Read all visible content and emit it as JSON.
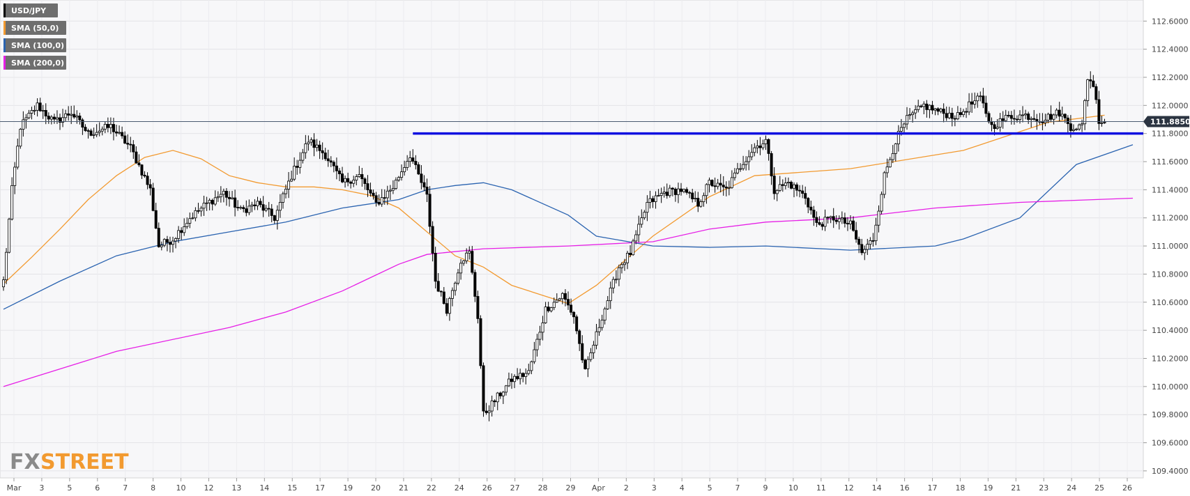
{
  "chart_data": {
    "type": "candlestick",
    "title": "",
    "symbol": "USD/JPY",
    "xlabel": "",
    "ylabel": "",
    "ylim": [
      109.35,
      112.75
    ],
    "y_ticks": [
      "112.6000",
      "112.4000",
      "112.2000",
      "112.0000",
      "111.8000",
      "111.6000",
      "111.4000",
      "111.2000",
      "111.0000",
      "110.8000",
      "110.6000",
      "110.4000",
      "110.2000",
      "110.0000",
      "109.8000",
      "109.6000",
      "109.4000"
    ],
    "x_ticks": [
      "Mar",
      "3",
      "5",
      "6",
      "7",
      "8",
      "10",
      "12",
      "13",
      "14",
      "15",
      "17",
      "19",
      "20",
      "21",
      "22",
      "24",
      "26",
      "27",
      "28",
      "29",
      "Apr",
      "2",
      "3",
      "4",
      "5",
      "7",
      "9",
      "10",
      "11",
      "12",
      "14",
      "16",
      "17",
      "18",
      "19",
      "21",
      "23",
      "24",
      "25",
      "26"
    ],
    "grid": true,
    "legend": {
      "placement": "top-left",
      "items": [
        {
          "label": "USD/JPY",
          "color": "#000000"
        },
        {
          "label": "SMA (50,0)",
          "color": "#f29a30"
        },
        {
          "label": "SMA (100,0)",
          "color": "#2a63b0"
        },
        {
          "label": "SMA (200,0)",
          "color": "#e61ee6"
        }
      ]
    },
    "current_price": {
      "label": "111.8850",
      "value": 111.885
    },
    "support_level": {
      "value": 111.8,
      "from_bar": 145,
      "to_bar": 184,
      "color": "#1010e0"
    },
    "smas": [
      {
        "name": "SMA (50,0)",
        "color": "#f29a30",
        "points": [
          [
            0,
            110.73
          ],
          [
            10,
            110.92
          ],
          [
            20,
            111.12
          ],
          [
            30,
            111.33
          ],
          [
            40,
            111.5
          ],
          [
            50,
            111.63
          ],
          [
            60,
            111.68
          ],
          [
            70,
            111.62
          ],
          [
            80,
            111.5
          ],
          [
            90,
            111.45
          ],
          [
            100,
            111.42
          ],
          [
            110,
            111.42
          ],
          [
            120,
            111.4
          ],
          [
            130,
            111.36
          ],
          [
            140,
            111.27
          ],
          [
            150,
            111.1
          ],
          [
            160,
            110.93
          ],
          [
            170,
            110.85
          ],
          [
            180,
            110.72
          ],
          [
            200,
            110.59
          ],
          [
            210,
            110.72
          ],
          [
            230,
            111.07
          ],
          [
            250,
            111.35
          ],
          [
            266,
            111.5
          ],
          [
            300,
            111.55
          ],
          [
            340,
            111.68
          ],
          [
            370,
            111.88
          ],
          [
            390,
            111.93
          ]
        ]
      },
      {
        "name": "SMA (100,0)",
        "color": "#2a63b0",
        "points": [
          [
            0,
            110.55
          ],
          [
            20,
            110.75
          ],
          [
            40,
            110.93
          ],
          [
            60,
            111.03
          ],
          [
            80,
            111.1
          ],
          [
            100,
            111.17
          ],
          [
            120,
            111.27
          ],
          [
            140,
            111.33
          ],
          [
            150,
            111.4
          ],
          [
            160,
            111.43
          ],
          [
            170,
            111.45
          ],
          [
            180,
            111.4
          ],
          [
            200,
            111.22
          ],
          [
            210,
            111.07
          ],
          [
            230,
            111.0
          ],
          [
            250,
            110.99
          ],
          [
            270,
            111.0
          ],
          [
            300,
            110.97
          ],
          [
            330,
            111.0
          ],
          [
            340,
            111.05
          ],
          [
            360,
            111.2
          ],
          [
            380,
            111.58
          ],
          [
            400,
            111.72
          ]
        ]
      },
      {
        "name": "SMA (200,0)",
        "color": "#e61ee6",
        "points": [
          [
            0,
            110.0
          ],
          [
            40,
            110.25
          ],
          [
            80,
            110.42
          ],
          [
            100,
            110.53
          ],
          [
            120,
            110.68
          ],
          [
            140,
            110.87
          ],
          [
            150,
            110.94
          ],
          [
            170,
            110.98
          ],
          [
            200,
            111.0
          ],
          [
            230,
            111.03
          ],
          [
            250,
            111.12
          ],
          [
            270,
            111.17
          ],
          [
            300,
            111.2
          ],
          [
            330,
            111.27
          ],
          [
            360,
            111.31
          ],
          [
            400,
            111.34
          ]
        ]
      }
    ],
    "anchors": [
      [
        0,
        110.75
      ],
      [
        3,
        111.4
      ],
      [
        6,
        111.85
      ],
      [
        12,
        112.0
      ],
      [
        18,
        111.88
      ],
      [
        24,
        111.95
      ],
      [
        30,
        111.8
      ],
      [
        38,
        111.85
      ],
      [
        45,
        111.7
      ],
      [
        52,
        111.4
      ],
      [
        55,
        111.0
      ],
      [
        60,
        111.05
      ],
      [
        66,
        111.2
      ],
      [
        72,
        111.3
      ],
      [
        78,
        111.38
      ],
      [
        84,
        111.25
      ],
      [
        90,
        111.3
      ],
      [
        96,
        111.2
      ],
      [
        102,
        111.5
      ],
      [
        108,
        111.75
      ],
      [
        114,
        111.65
      ],
      [
        120,
        111.45
      ],
      [
        126,
        111.5
      ],
      [
        132,
        111.3
      ],
      [
        138,
        111.42
      ],
      [
        144,
        111.65
      ],
      [
        150,
        111.35
      ],
      [
        153,
        110.75
      ],
      [
        157,
        110.55
      ],
      [
        162,
        110.9
      ],
      [
        165,
        110.95
      ],
      [
        168,
        110.5
      ],
      [
        170,
        109.8
      ],
      [
        174,
        109.9
      ],
      [
        180,
        110.05
      ],
      [
        186,
        110.1
      ],
      [
        192,
        110.55
      ],
      [
        198,
        110.65
      ],
      [
        202,
        110.5
      ],
      [
        206,
        110.1
      ],
      [
        212,
        110.5
      ],
      [
        218,
        110.85
      ],
      [
        222,
        110.95
      ],
      [
        228,
        111.3
      ],
      [
        234,
        111.38
      ],
      [
        240,
        111.4
      ],
      [
        246,
        111.3
      ],
      [
        250,
        111.45
      ],
      [
        256,
        111.4
      ],
      [
        262,
        111.6
      ],
      [
        266,
        111.7
      ],
      [
        270,
        111.75
      ],
      [
        273,
        111.4
      ],
      [
        278,
        111.45
      ],
      [
        284,
        111.35
      ],
      [
        288,
        111.15
      ],
      [
        294,
        111.2
      ],
      [
        300,
        111.15
      ],
      [
        304,
        110.95
      ],
      [
        308,
        111.05
      ],
      [
        312,
        111.5
      ],
      [
        316,
        111.75
      ],
      [
        320,
        111.9
      ],
      [
        326,
        112.0
      ],
      [
        332,
        111.95
      ],
      [
        338,
        111.92
      ],
      [
        342,
        112.0
      ],
      [
        346,
        112.05
      ],
      [
        350,
        111.85
      ],
      [
        356,
        111.92
      ],
      [
        362,
        111.93
      ],
      [
        368,
        111.9
      ],
      [
        374,
        111.95
      ],
      [
        378,
        111.85
      ],
      [
        382,
        111.85
      ],
      [
        384,
        112.2
      ],
      [
        386,
        112.15
      ],
      [
        388,
        111.9
      ],
      [
        390,
        111.88
      ]
    ]
  }
}
